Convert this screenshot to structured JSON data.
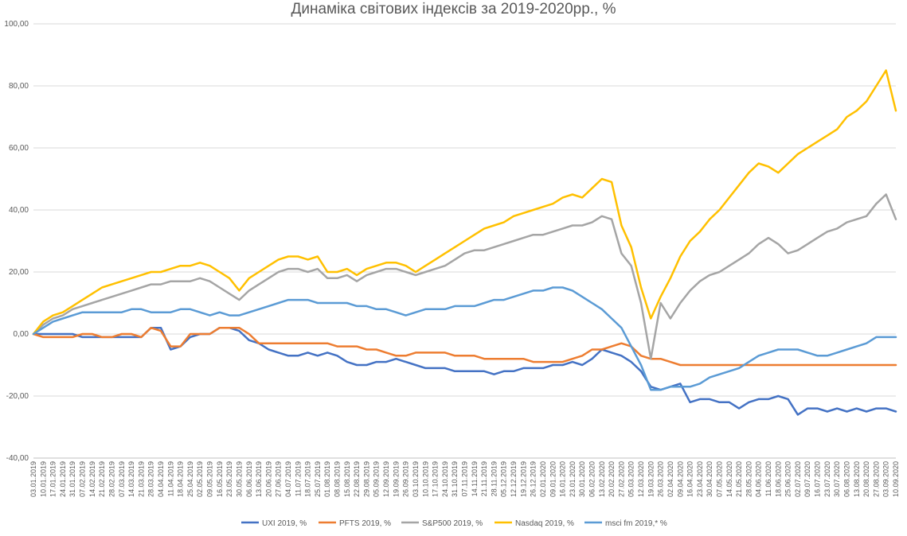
{
  "chart_data": {
    "type": "line",
    "title": "Динаміка світових індексів за 2019-2020рр., %",
    "ylim": [
      -40,
      100
    ],
    "yticks": [
      "-40,00",
      "-20,00",
      "0,00",
      "20,00",
      "40,00",
      "60,00",
      "80,00",
      "100,00"
    ],
    "ytick_values": [
      -40,
      -20,
      0,
      20,
      40,
      60,
      80,
      100
    ],
    "grid": "horizontal",
    "legend_position": "bottom",
    "categories": [
      "03.01.2019",
      "10.01.2019",
      "17.01.2019",
      "24.01.2019",
      "31.01.2019",
      "07.02.2019",
      "14.02.2019",
      "21.02.2019",
      "28.02.2019",
      "07.03.2019",
      "14.03.2019",
      "21.03.2019",
      "28.03.2019",
      "04.04.2019",
      "11.04.2019",
      "18.04.2019",
      "25.04.2019",
      "02.05.2019",
      "09.05.2019",
      "16.05.2019",
      "23.05.2019",
      "30.05.2019",
      "06.06.2019",
      "13.06.2019",
      "20.06.2019",
      "27.06.2019",
      "04.07.2019",
      "11.07.2019",
      "18.07.2019",
      "25.07.2019",
      "01.08.2019",
      "08.08.2019",
      "15.08.2019",
      "22.08.2019",
      "29.08.2019",
      "05.09.2019",
      "12.09.2019",
      "19.09.2019",
      "26.09.2019",
      "03.10.2019",
      "10.10.2019",
      "17.10.2019",
      "24.10.2019",
      "31.10.2019",
      "07.11.2019",
      "14.11.2019",
      "21.11.2019",
      "28.11.2019",
      "05.12.2019",
      "12.12.2019",
      "19.12.2019",
      "26.12.2019",
      "02.01.2020",
      "09.01.2020",
      "16.01.2020",
      "23.01.2020",
      "30.01.2020",
      "06.02.2020",
      "13.02.2020",
      "20.02.2020",
      "27.02.2020",
      "05.03.2020",
      "12.03.2020",
      "19.03.2020",
      "26.03.2020",
      "02.04.2020",
      "09.04.2020",
      "16.04.2020",
      "23.04.2020",
      "30.04.2020",
      "07.05.2020",
      "14.05.2020",
      "21.05.2020",
      "28.05.2020",
      "04.06.2020",
      "11.06.2020",
      "18.06.2020",
      "25.06.2020",
      "02.07.2020",
      "09.07.2020",
      "16.07.2020",
      "23.07.2020",
      "30.07.2020",
      "06.08.2020",
      "13.08.2020",
      "20.08.2020",
      "27.08.2020",
      "03.09.2020",
      "10.09.2020"
    ],
    "series": [
      {
        "name": "UXI 2019, %",
        "color": "#4472C4",
        "values": [
          0,
          0,
          0,
          0,
          0,
          -1,
          -1,
          -1,
          -1,
          -1,
          -1,
          -1,
          2,
          2,
          -5,
          -4,
          -1,
          0,
          0,
          2,
          2,
          1,
          -2,
          -3,
          -5,
          -6,
          -7,
          -7,
          -6,
          -7,
          -6,
          -7,
          -9,
          -10,
          -10,
          -9,
          -9,
          -8,
          -9,
          -10,
          -11,
          -11,
          -11,
          -12,
          -12,
          -12,
          -12,
          -13,
          -12,
          -12,
          -11,
          -11,
          -11,
          -10,
          -10,
          -9,
          -10,
          -8,
          -5,
          -6,
          -7,
          -9,
          -12,
          -17,
          -18,
          -17,
          -16,
          -22,
          -21,
          -21,
          -22,
          -22,
          -24,
          -22,
          -21,
          -21,
          -20,
          -21,
          -26,
          -24,
          -24,
          -25,
          -24,
          -25,
          -24,
          -25,
          -24,
          -24,
          -25
        ]
      },
      {
        "name": "PFTS 2019, %",
        "color": "#ED7D31",
        "values": [
          0,
          -1,
          -1,
          -1,
          -1,
          0,
          0,
          -1,
          -1,
          0,
          0,
          -1,
          2,
          1,
          -4,
          -4,
          0,
          0,
          0,
          2,
          2,
          2,
          0,
          -3,
          -3,
          -3,
          -3,
          -3,
          -3,
          -3,
          -3,
          -4,
          -4,
          -4,
          -5,
          -5,
          -6,
          -7,
          -7,
          -6,
          -6,
          -6,
          -6,
          -7,
          -7,
          -7,
          -8,
          -8,
          -8,
          -8,
          -8,
          -9,
          -9,
          -9,
          -9,
          -8,
          -7,
          -5,
          -5,
          -4,
          -3,
          -4,
          -7,
          -8,
          -8,
          -9,
          -10,
          -10,
          -10,
          -10,
          -10,
          -10,
          -10,
          -10,
          -10,
          -10,
          -10,
          -10,
          -10,
          -10,
          -10,
          -10,
          -10,
          -10,
          -10,
          -10,
          -10,
          -10,
          -10
        ]
      },
      {
        "name": "S&P500 2019, %",
        "color": "#A5A5A5",
        "values": [
          0,
          3,
          5,
          6,
          8,
          9,
          10,
          11,
          12,
          13,
          14,
          15,
          16,
          16,
          17,
          17,
          17,
          18,
          17,
          15,
          13,
          11,
          14,
          16,
          18,
          20,
          21,
          21,
          20,
          21,
          18,
          18,
          19,
          17,
          19,
          20,
          21,
          21,
          20,
          19,
          20,
          21,
          22,
          24,
          26,
          27,
          27,
          28,
          29,
          30,
          31,
          32,
          32,
          33,
          34,
          35,
          35,
          36,
          38,
          37,
          26,
          22,
          10,
          -8,
          10,
          5,
          10,
          14,
          17,
          19,
          20,
          22,
          24,
          26,
          29,
          31,
          29,
          26,
          27,
          29,
          31,
          33,
          34,
          36,
          37,
          38,
          42,
          45,
          37
        ]
      },
      {
        "name": "Nasdaq 2019, %",
        "color": "#FFC000",
        "values": [
          0,
          4,
          6,
          7,
          9,
          11,
          13,
          15,
          16,
          17,
          18,
          19,
          20,
          20,
          21,
          22,
          22,
          23,
          22,
          20,
          18,
          14,
          18,
          20,
          22,
          24,
          25,
          25,
          24,
          25,
          20,
          20,
          21,
          19,
          21,
          22,
          23,
          23,
          22,
          20,
          22,
          24,
          26,
          28,
          30,
          32,
          34,
          35,
          36,
          38,
          39,
          40,
          41,
          42,
          44,
          45,
          44,
          47,
          50,
          49,
          35,
          28,
          15,
          5,
          12,
          18,
          25,
          30,
          33,
          37,
          40,
          44,
          48,
          52,
          55,
          54,
          52,
          55,
          58,
          60,
          62,
          64,
          66,
          70,
          72,
          75,
          80,
          85,
          72
        ]
      },
      {
        "name": "msci fm 2019,* %",
        "color": "#5B9BD5",
        "values": [
          0,
          2,
          4,
          5,
          6,
          7,
          7,
          7,
          7,
          7,
          8,
          8,
          7,
          7,
          7,
          8,
          8,
          7,
          6,
          7,
          6,
          6,
          7,
          8,
          9,
          10,
          11,
          11,
          11,
          10,
          10,
          10,
          10,
          9,
          9,
          8,
          8,
          7,
          6,
          7,
          8,
          8,
          8,
          9,
          9,
          9,
          10,
          11,
          11,
          12,
          13,
          14,
          14,
          15,
          15,
          14,
          12,
          10,
          8,
          5,
          2,
          -4,
          -10,
          -18,
          -18,
          -17,
          -17,
          -17,
          -16,
          -14,
          -13,
          -12,
          -11,
          -9,
          -7,
          -6,
          -5,
          -5,
          -5,
          -6,
          -7,
          -7,
          -6,
          -5,
          -4,
          -3,
          -1,
          -1,
          -1
        ]
      }
    ]
  }
}
